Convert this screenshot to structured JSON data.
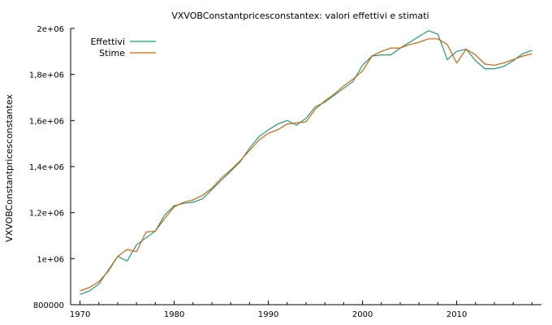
{
  "chart_data": {
    "type": "line",
    "title": "VXVOBConstantpricesconstantex: valori effettivi e stimati",
    "xlabel": "",
    "ylabel": "VXVOBConstantpricesconstantex",
    "xlim": [
      1969,
      2019
    ],
    "ylim": [
      800000,
      2000000
    ],
    "x_ticks": [
      1970,
      1980,
      1990,
      2000,
      2010
    ],
    "x_tick_labels": [
      "1970",
      "1980",
      "1990",
      "2000",
      "2010"
    ],
    "y_ticks": [
      800000,
      1000000,
      1200000,
      1400000,
      1600000,
      1800000,
      2000000
    ],
    "y_tick_labels": [
      "800000",
      "1e+06",
      "1,2e+06",
      "1,4e+06",
      "1,6e+06",
      "1,8e+06",
      "2e+06"
    ],
    "grid": false,
    "legend_position": "top-left",
    "x": [
      1970,
      1971,
      1972,
      1973,
      1974,
      1975,
      1976,
      1977,
      1978,
      1979,
      1980,
      1981,
      1982,
      1983,
      1984,
      1985,
      1986,
      1987,
      1988,
      1989,
      1990,
      1991,
      1992,
      1993,
      1994,
      1995,
      1996,
      1997,
      1998,
      1999,
      2000,
      2001,
      2002,
      2003,
      2004,
      2005,
      2006,
      2007,
      2008,
      2009,
      2010,
      2011,
      2012,
      2013,
      2014,
      2015,
      2016,
      2017,
      2018
    ],
    "series": [
      {
        "name": "Effettivi",
        "color": "#1b9e77",
        "values": [
          845000,
          860000,
          890000,
          950000,
          1010000,
          990000,
          1060000,
          1090000,
          1120000,
          1190000,
          1230000,
          1240000,
          1245000,
          1260000,
          1300000,
          1340000,
          1380000,
          1420000,
          1480000,
          1530000,
          1560000,
          1585000,
          1600000,
          1580000,
          1610000,
          1660000,
          1680000,
          1710000,
          1740000,
          1770000,
          1840000,
          1880000,
          1885000,
          1885000,
          1915000,
          1940000,
          1965000,
          1990000,
          1975000,
          1865000,
          1900000,
          1910000,
          1860000,
          1825000,
          1825000,
          1835000,
          1860000,
          1890000,
          1905000
        ]
      },
      {
        "name": "Stime",
        "color": "#d95f02",
        "values": [
          860000,
          875000,
          900000,
          945000,
          1010000,
          1040000,
          1030000,
          1115000,
          1120000,
          1175000,
          1225000,
          1245000,
          1255000,
          1275000,
          1305000,
          1350000,
          1385000,
          1425000,
          1470000,
          1515000,
          1545000,
          1560000,
          1585000,
          1590000,
          1595000,
          1650000,
          1685000,
          1715000,
          1750000,
          1780000,
          1815000,
          1880000,
          1900000,
          1915000,
          1915000,
          1930000,
          1940000,
          1955000,
          1955000,
          1930000,
          1850000,
          1910000,
          1885000,
          1845000,
          1840000,
          1850000,
          1865000,
          1880000,
          1890000
        ]
      }
    ]
  }
}
